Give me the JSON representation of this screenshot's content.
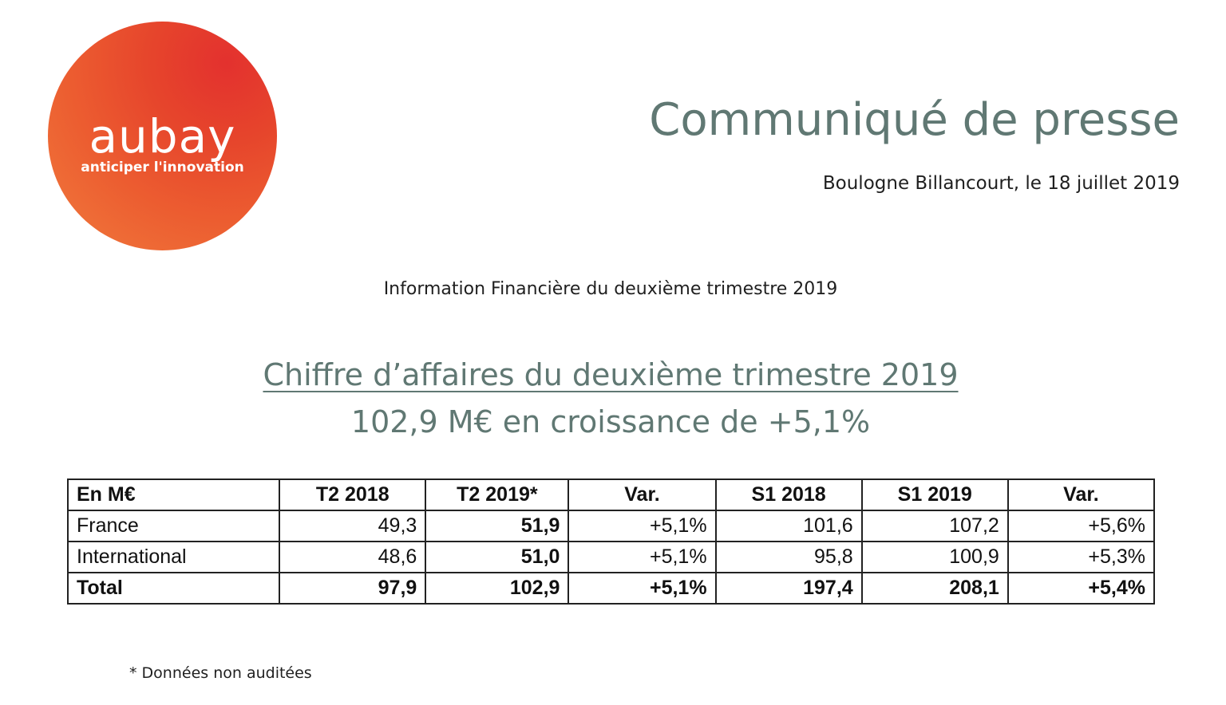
{
  "logo": {
    "wordmark": "aubay",
    "tagline": "anticiper l'innovation"
  },
  "header": {
    "title": "Communiqué de presse",
    "dateline": "Boulogne Billancourt, le 18 juillet 2019"
  },
  "intro": "Information Financière du deuxième trimestre 2019",
  "headline": "Chiffre d’affaires du deuxième trimestre 2019",
  "subheadline": "102,9 M€ en croissance de +5,1%",
  "table": {
    "headers": [
      "En M€",
      "T2 2018",
      "T2 2019*",
      "Var.",
      "S1 2018",
      "S1 2019",
      "Var."
    ],
    "rows": [
      {
        "label": "France",
        "t2_2018": "49,3",
        "t2_2019": "51,9",
        "var_t2": "+5,1%",
        "s1_2018": "101,6",
        "s1_2019": "107,2",
        "var_s1": "+5,6%"
      },
      {
        "label": "International",
        "t2_2018": "48,6",
        "t2_2019": "51,0",
        "var_t2": "+5,1%",
        "s1_2018": "95,8",
        "s1_2019": "100,9",
        "var_s1": "+5,3%"
      },
      {
        "label": "Total",
        "t2_2018": "97,9",
        "t2_2019": "102,9",
        "var_t2": "+5,1%",
        "s1_2018": "197,4",
        "s1_2019": "208,1",
        "var_s1": "+5,4%"
      }
    ]
  },
  "footnote": "* Données non auditées",
  "colors": {
    "brand_orange": "#e6452c",
    "heading_gray_green": "#607873"
  }
}
